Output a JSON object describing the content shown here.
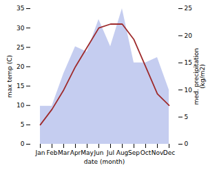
{
  "chart_data": {
    "type": "line",
    "categories": [
      "Jan",
      "Feb",
      "Mar",
      "Apr",
      "May",
      "Jun",
      "Jul",
      "Aug",
      "Sep",
      "Oct",
      "Nov",
      "Dec"
    ],
    "xlabel": "date (month)",
    "ylabel": "max temp (C)",
    "y2label": "med. precipitation\n(kg/m2)",
    "ylim": [
      0,
      35
    ],
    "yticks": [
      0,
      5,
      10,
      15,
      20,
      25,
      30,
      35
    ],
    "y2lim": [
      0,
      25
    ],
    "y2ticks": [
      0,
      5,
      10,
      15,
      20,
      25
    ],
    "series": [
      {
        "type": "area",
        "axis": "y2",
        "color": "#c5cdf0",
        "values": [
          7,
          7,
          13,
          18,
          17,
          23,
          18,
          25,
          15,
          15,
          16,
          10
        ]
      },
      {
        "type": "line",
        "color": "#9e2a2b",
        "values": [
          5,
          9,
          14,
          20,
          25,
          30,
          31,
          31,
          27,
          20,
          13,
          10
        ]
      }
    ]
  }
}
